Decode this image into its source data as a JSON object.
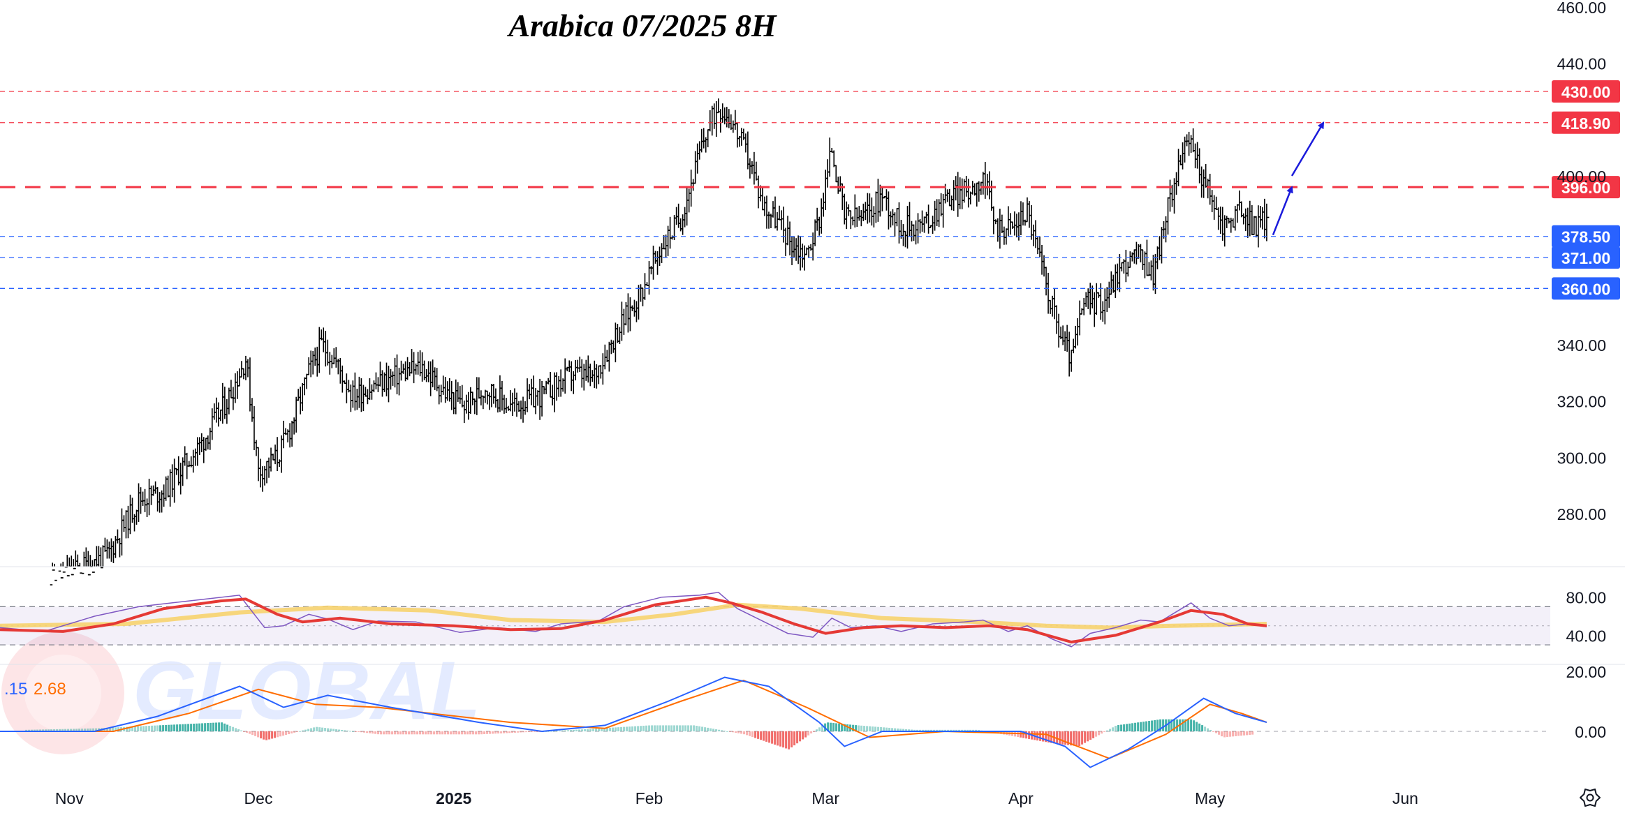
{
  "chart_data": {
    "type": "candlestick",
    "title": "Arabica 07/2025 8H",
    "watermark": "GLOBAL",
    "x_axis": {
      "tick_labels": [
        "Nov",
        "Dec",
        "2025",
        "Feb",
        "Mar",
        "Apr",
        "May",
        "Jun"
      ],
      "tick_dates": [
        "2024-11-01",
        "2024-12-01",
        "2025-01-01",
        "2025-02-01",
        "2025-03-01",
        "2025-04-01",
        "2025-05-01",
        "2025-06-01"
      ],
      "range": [
        "2024-10-21",
        "2025-06-24"
      ]
    },
    "price_axis": {
      "ticks": [
        460,
        440,
        400,
        340,
        320,
        300,
        280
      ],
      "tick_labels": [
        "460.00",
        "440.00",
        "400.00",
        "340.00",
        "320.00",
        "300.00",
        "280.00"
      ],
      "range": [
        261,
        461
      ]
    },
    "levels": [
      {
        "value": 430.0,
        "label": "430.00",
        "color": "#f23645",
        "style": "dotted"
      },
      {
        "value": 418.9,
        "label": "418.90",
        "color": "#f23645",
        "style": "dotted"
      },
      {
        "value": 396.0,
        "label": "396.00",
        "color": "#f23645",
        "style": "dashed-thick"
      },
      {
        "value": 378.5,
        "label": "378.50",
        "color": "#2962ff",
        "style": "dotted"
      },
      {
        "value": 371.0,
        "label": "371.00",
        "color": "#2962ff",
        "style": "dotted"
      },
      {
        "value": 360.0,
        "label": "360.00",
        "color": "#2962ff",
        "style": "dotted"
      }
    ],
    "price_path": [
      [
        "2024-10-28",
        255
      ],
      [
        "2024-11-07",
        265
      ],
      [
        "2024-11-12",
        285
      ],
      [
        "2024-11-16",
        288
      ],
      [
        "2024-11-22",
        305
      ],
      [
        "2024-11-26",
        320
      ],
      [
        "2024-11-29",
        335
      ],
      [
        "2024-12-01",
        295
      ],
      [
        "2024-12-04",
        300
      ],
      [
        "2024-12-06",
        310
      ],
      [
        "2024-12-09",
        330
      ],
      [
        "2024-12-11",
        340
      ],
      [
        "2024-12-13",
        335
      ],
      [
        "2024-12-16",
        322
      ],
      [
        "2024-12-19",
        325
      ],
      [
        "2024-12-24",
        330
      ],
      [
        "2024-12-27",
        332
      ],
      [
        "2024-12-31",
        322
      ],
      [
        "2025-01-03",
        318
      ],
      [
        "2025-01-06",
        325
      ],
      [
        "2025-01-10",
        318
      ],
      [
        "2025-01-15",
        322
      ],
      [
        "2025-01-20",
        330
      ],
      [
        "2025-01-23",
        328
      ],
      [
        "2025-01-27",
        345
      ],
      [
        "2025-01-31",
        360
      ],
      [
        "2025-02-03",
        375
      ],
      [
        "2025-02-06",
        385
      ],
      [
        "2025-02-08",
        400
      ],
      [
        "2025-02-10",
        415
      ],
      [
        "2025-02-12",
        425
      ],
      [
        "2025-02-14",
        420
      ],
      [
        "2025-02-17",
        405
      ],
      [
        "2025-02-19",
        390
      ],
      [
        "2025-02-21",
        385
      ],
      [
        "2025-02-24",
        375
      ],
      [
        "2025-02-26",
        372
      ],
      [
        "2025-02-28",
        385
      ],
      [
        "2025-03-02",
        410
      ],
      [
        "2025-03-04",
        385
      ],
      [
        "2025-03-07",
        385
      ],
      [
        "2025-03-10",
        393
      ],
      [
        "2025-03-13",
        382
      ],
      [
        "2025-03-17",
        383
      ],
      [
        "2025-03-20",
        392
      ],
      [
        "2025-03-24",
        395
      ],
      [
        "2025-03-26",
        400
      ],
      [
        "2025-03-28",
        382
      ],
      [
        "2025-03-31",
        382
      ],
      [
        "2025-04-02",
        388
      ],
      [
        "2025-04-04",
        370
      ],
      [
        "2025-04-07",
        345
      ],
      [
        "2025-04-09",
        335
      ],
      [
        "2025-04-11",
        355
      ],
      [
        "2025-04-14",
        355
      ],
      [
        "2025-04-17",
        368
      ],
      [
        "2025-04-20",
        372
      ],
      [
        "2025-04-22",
        365
      ],
      [
        "2025-04-24",
        385
      ],
      [
        "2025-04-26",
        405
      ],
      [
        "2025-04-28",
        412
      ],
      [
        "2025-04-30",
        398
      ],
      [
        "2025-05-03",
        382
      ],
      [
        "2025-05-06",
        388
      ],
      [
        "2025-05-08",
        382
      ],
      [
        "2025-05-10",
        385
      ]
    ],
    "rsi": {
      "ticks": [
        80,
        40
      ],
      "tick_labels": [
        "80.00",
        "40.00"
      ],
      "band": [
        30,
        70
      ],
      "midline": 50,
      "range": [
        22,
        90
      ],
      "rsi_line": [
        [
          "2024-10-21",
          48
        ],
        [
          "2024-10-28",
          44
        ],
        [
          "2024-11-05",
          60
        ],
        [
          "2024-11-12",
          70
        ],
        [
          "2024-11-20",
          76
        ],
        [
          "2024-11-28",
          82
        ],
        [
          "2024-12-02",
          48
        ],
        [
          "2024-12-05",
          50
        ],
        [
          "2024-12-09",
          62
        ],
        [
          "2024-12-12",
          57
        ],
        [
          "2024-12-16",
          46
        ],
        [
          "2024-12-20",
          55
        ],
        [
          "2024-12-26",
          54
        ],
        [
          "2025-01-02",
          43
        ],
        [
          "2025-01-08",
          48
        ],
        [
          "2025-01-14",
          44
        ],
        [
          "2025-01-18",
          52
        ],
        [
          "2025-01-24",
          55
        ],
        [
          "2025-01-28",
          70
        ],
        [
          "2025-02-03",
          80
        ],
        [
          "2025-02-09",
          82
        ],
        [
          "2025-02-12",
          85
        ],
        [
          "2025-02-15",
          68
        ],
        [
          "2025-02-19",
          55
        ],
        [
          "2025-02-23",
          42
        ],
        [
          "2025-02-27",
          38
        ],
        [
          "2025-03-02",
          58
        ],
        [
          "2025-03-05",
          48
        ],
        [
          "2025-03-09",
          50
        ],
        [
          "2025-03-13",
          44
        ],
        [
          "2025-03-18",
          52
        ],
        [
          "2025-03-23",
          54
        ],
        [
          "2025-03-26",
          56
        ],
        [
          "2025-03-30",
          44
        ],
        [
          "2025-04-02",
          50
        ],
        [
          "2025-04-06",
          36
        ],
        [
          "2025-04-09",
          28
        ],
        [
          "2025-04-12",
          42
        ],
        [
          "2025-04-16",
          48
        ],
        [
          "2025-04-20",
          56
        ],
        [
          "2025-04-23",
          54
        ],
        [
          "2025-04-26",
          66
        ],
        [
          "2025-04-28",
          74
        ],
        [
          "2025-05-01",
          58
        ],
        [
          "2025-05-04",
          50
        ],
        [
          "2025-05-07",
          52
        ],
        [
          "2025-05-10",
          49
        ]
      ],
      "rsi_avg": [
        [
          "2024-10-21",
          46
        ],
        [
          "2024-10-31",
          44
        ],
        [
          "2024-11-08",
          52
        ],
        [
          "2024-11-16",
          68
        ],
        [
          "2024-11-25",
          76
        ],
        [
          "2024-11-29",
          78
        ],
        [
          "2024-12-04",
          62
        ],
        [
          "2024-12-08",
          54
        ],
        [
          "2024-12-14",
          58
        ],
        [
          "2024-12-22",
          52
        ],
        [
          "2025-01-01",
          50
        ],
        [
          "2025-01-10",
          46
        ],
        [
          "2025-01-18",
          47
        ],
        [
          "2025-01-25",
          56
        ],
        [
          "2025-02-02",
          72
        ],
        [
          "2025-02-10",
          80
        ],
        [
          "2025-02-14",
          74
        ],
        [
          "2025-02-19",
          64
        ],
        [
          "2025-02-24",
          52
        ],
        [
          "2025-03-01",
          42
        ],
        [
          "2025-03-07",
          48
        ],
        [
          "2025-03-13",
          50
        ],
        [
          "2025-03-20",
          48
        ],
        [
          "2025-03-27",
          50
        ],
        [
          "2025-04-02",
          46
        ],
        [
          "2025-04-09",
          33
        ],
        [
          "2025-04-16",
          40
        ],
        [
          "2025-04-23",
          54
        ],
        [
          "2025-04-28",
          66
        ],
        [
          "2025-05-03",
          62
        ],
        [
          "2025-05-07",
          52
        ],
        [
          "2025-05-10",
          50
        ]
      ],
      "rsi_ma_long": [
        [
          "2024-10-21",
          50
        ],
        [
          "2024-11-10",
          52
        ],
        [
          "2024-11-28",
          64
        ],
        [
          "2024-12-12",
          69
        ],
        [
          "2024-12-28",
          66
        ],
        [
          "2025-01-10",
          56
        ],
        [
          "2025-01-25",
          54
        ],
        [
          "2025-02-05",
          62
        ],
        [
          "2025-02-15",
          72
        ],
        [
          "2025-02-25",
          68
        ],
        [
          "2025-03-10",
          58
        ],
        [
          "2025-03-25",
          54
        ],
        [
          "2025-04-05",
          50
        ],
        [
          "2025-04-15",
          48
        ],
        [
          "2025-04-25",
          50
        ],
        [
          "2025-05-10",
          52
        ]
      ]
    },
    "macd": {
      "legend_values": [
        ".15",
        "2.68"
      ],
      "tick_labels": [
        "20.00",
        "0.00"
      ],
      "range": [
        -16,
        24
      ],
      "macd_line": [
        [
          "2024-10-21",
          0
        ],
        [
          "2024-11-05",
          0
        ],
        [
          "2024-11-15",
          5
        ],
        [
          "2024-11-28",
          15
        ],
        [
          "2024-12-05",
          8
        ],
        [
          "2024-12-12",
          12
        ],
        [
          "2024-12-22",
          8
        ],
        [
          "2025-01-05",
          3
        ],
        [
          "2025-01-15",
          0
        ],
        [
          "2025-01-25",
          2
        ],
        [
          "2025-02-04",
          10
        ],
        [
          "2025-02-13",
          18
        ],
        [
          "2025-02-20",
          15
        ],
        [
          "2025-02-28",
          3
        ],
        [
          "2025-03-04",
          -5
        ],
        [
          "2025-03-10",
          0
        ],
        [
          "2025-03-20",
          0
        ],
        [
          "2025-04-01",
          0
        ],
        [
          "2025-04-08",
          -5
        ],
        [
          "2025-04-12",
          -12
        ],
        [
          "2025-04-18",
          -6
        ],
        [
          "2025-04-24",
          2
        ],
        [
          "2025-04-30",
          11
        ],
        [
          "2025-05-05",
          6
        ],
        [
          "2025-05-10",
          3
        ]
      ],
      "signal_line": [
        [
          "2024-10-21",
          0
        ],
        [
          "2024-11-08",
          0
        ],
        [
          "2024-11-20",
          6
        ],
        [
          "2024-12-01",
          14
        ],
        [
          "2024-12-10",
          9
        ],
        [
          "2024-12-20",
          8
        ],
        [
          "2025-01-10",
          3
        ],
        [
          "2025-01-25",
          1
        ],
        [
          "2025-02-06",
          10
        ],
        [
          "2025-02-16",
          17
        ],
        [
          "2025-02-26",
          8
        ],
        [
          "2025-03-08",
          -2
        ],
        [
          "2025-03-20",
          0
        ],
        [
          "2025-04-05",
          -1
        ],
        [
          "2025-04-15",
          -9
        ],
        [
          "2025-04-24",
          -1
        ],
        [
          "2025-05-01",
          9
        ],
        [
          "2025-05-06",
          6
        ],
        [
          "2025-05-10",
          3
        ]
      ],
      "histogram": [
        [
          "2024-10-25",
          0.5
        ],
        [
          "2024-11-05",
          1
        ],
        [
          "2024-11-15",
          2
        ],
        [
          "2024-11-25",
          3
        ],
        [
          "2024-12-02",
          -3
        ],
        [
          "2024-12-10",
          1.5
        ],
        [
          "2024-12-20",
          -1
        ],
        [
          "2025-01-05",
          -1
        ],
        [
          "2025-01-20",
          0.5
        ],
        [
          "2025-02-01",
          2
        ],
        [
          "2025-02-08",
          2
        ],
        [
          "2025-02-16",
          -1
        ],
        [
          "2025-02-23",
          -6
        ],
        [
          "2025-03-01",
          3
        ],
        [
          "2025-03-06",
          2
        ],
        [
          "2025-03-15",
          0.5
        ],
        [
          "2025-03-25",
          0.5
        ],
        [
          "2025-04-06",
          -4
        ],
        [
          "2025-04-10",
          -5
        ],
        [
          "2025-04-16",
          2
        ],
        [
          "2025-04-23",
          4
        ],
        [
          "2025-04-28",
          4
        ],
        [
          "2025-05-03",
          -2
        ],
        [
          "2025-05-08",
          -1
        ]
      ]
    },
    "arrows": [
      {
        "from": [
          "2025-05-11",
          379
        ],
        "to": [
          "2025-05-14",
          396
        ]
      },
      {
        "from": [
          "2025-05-14",
          400
        ],
        "to": [
          "2025-05-19",
          418.9
        ]
      }
    ],
    "settings_icon": "gear-icon"
  }
}
